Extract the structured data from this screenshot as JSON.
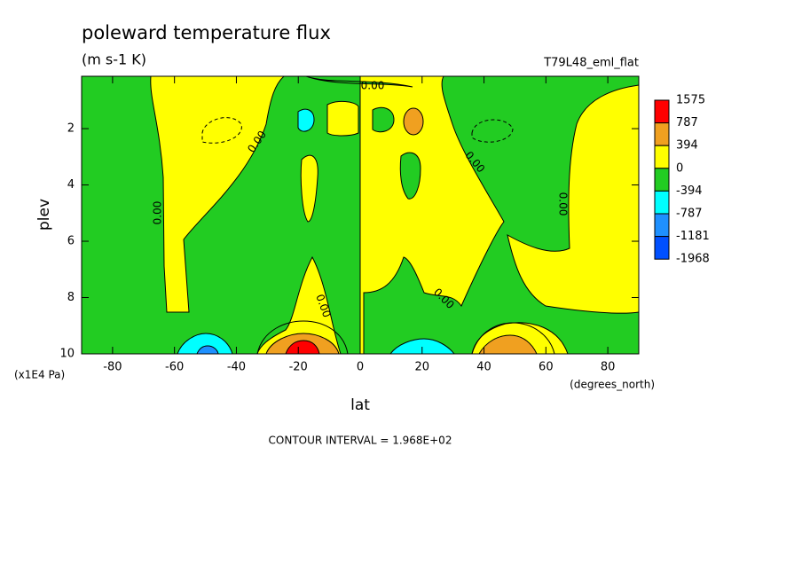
{
  "chart_data": {
    "type": "contour",
    "title": "poleward temperature flux",
    "subtitle": "(m s-1 K)",
    "dataset_label": "T79L48_eml_flat",
    "x_label": "lat",
    "y_label": "plev",
    "x_units": "(degrees_north)",
    "y_units": "(x1E4 Pa)",
    "footnote": "CONTOUR INTERVAL = 1.968E+02",
    "xlim": [
      -90,
      90
    ],
    "xticks": [
      -80,
      -60,
      -40,
      -20,
      0,
      20,
      40,
      60,
      80
    ],
    "ylim": [
      0.14,
      10
    ],
    "yticks": [
      2,
      4,
      6,
      8,
      10
    ],
    "y_reversed": true,
    "levels": [
      1575,
      787,
      394,
      0,
      -394,
      -787,
      -1181,
      -1968
    ],
    "level_colors": [
      "#ff0000",
      "#f0a020",
      "#ffff00",
      "#22cc22",
      "#00ffff",
      "#1e90ff",
      "#0050ff"
    ],
    "annotations": [
      "0.00",
      "0.00",
      "0.00",
      "0.00",
      "0.00",
      "0.00",
      "0.00"
    ]
  }
}
